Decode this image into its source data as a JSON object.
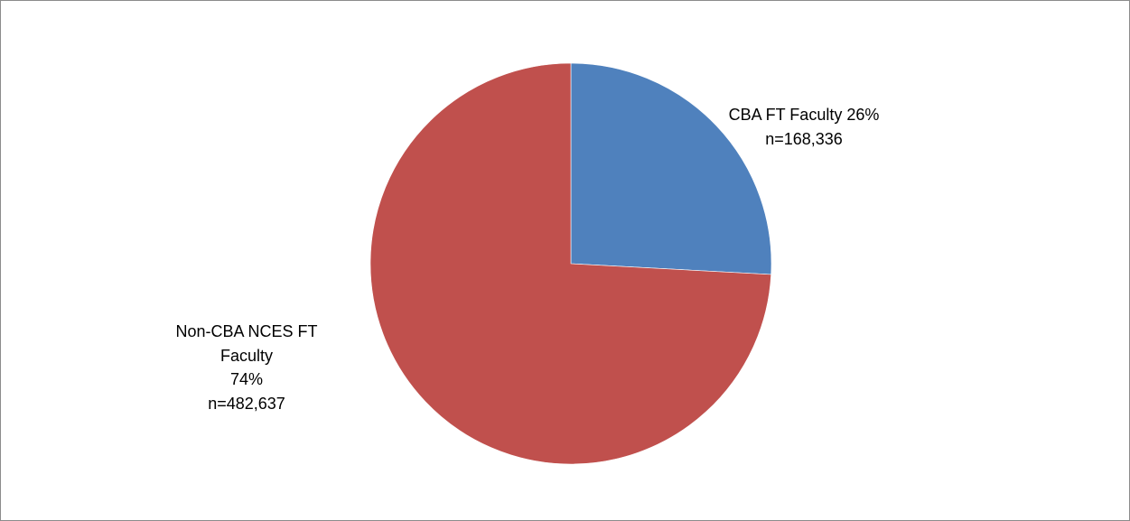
{
  "chart_data": {
    "type": "pie",
    "categories": [
      "CBA FT Faculty",
      "Non-CBA NCES FT Faculty"
    ],
    "values": [
      26,
      74
    ],
    "value_labels": [
      "26%",
      "74%"
    ],
    "counts": [
      168336,
      482637
    ],
    "count_labels": [
      "n=168,336",
      "n=482,637"
    ],
    "colors": [
      "#4f81bd",
      "#c0504d"
    ]
  }
}
